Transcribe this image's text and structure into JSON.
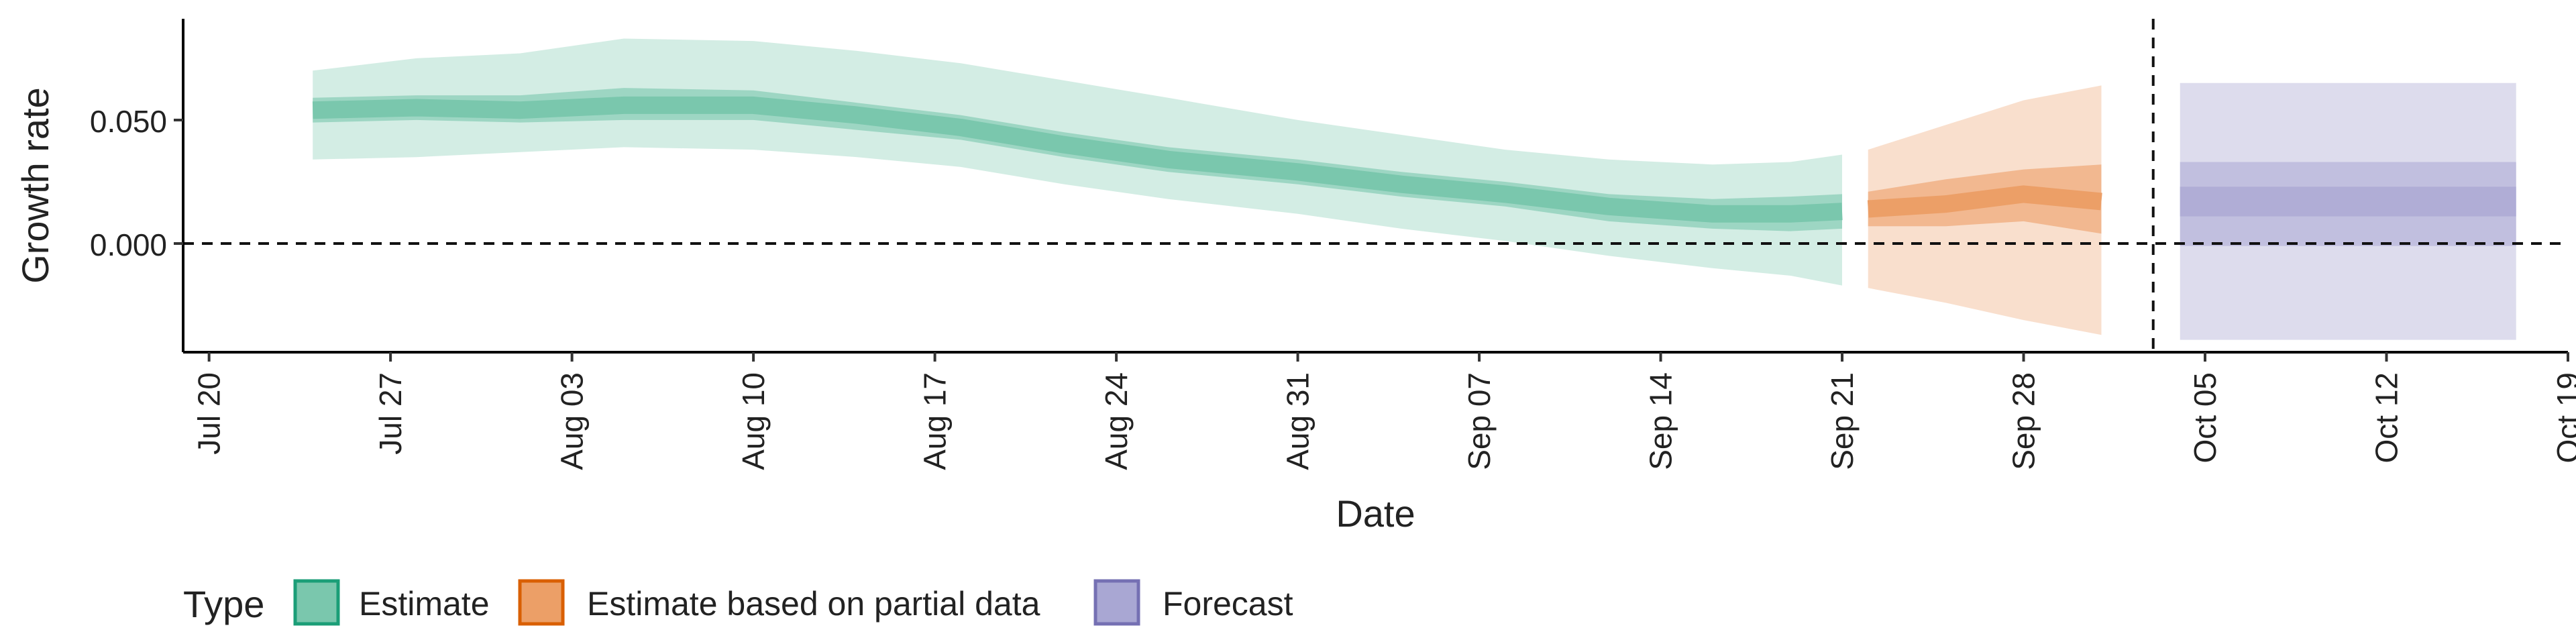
{
  "chart_data": {
    "type": "area",
    "xlabel": "Date",
    "ylabel": "Growth rate",
    "x_range": [
      "2020-07-19",
      "2020-10-19"
    ],
    "ylim": [
      -0.044,
      0.091
    ],
    "x_ticks": [
      "Jul 20",
      "Jul 27",
      "Aug 03",
      "Aug 10",
      "Aug 17",
      "Aug 24",
      "Aug 31",
      "Sep 07",
      "Sep 14",
      "Sep 21",
      "Sep 28",
      "Oct 05",
      "Oct 12",
      "Oct 19"
    ],
    "x_tick_dates": [
      "2020-07-20",
      "2020-07-27",
      "2020-08-03",
      "2020-08-10",
      "2020-08-17",
      "2020-08-24",
      "2020-08-31",
      "2020-09-07",
      "2020-09-14",
      "2020-09-21",
      "2020-09-28",
      "2020-10-05",
      "2020-10-12",
      "2020-10-19"
    ],
    "y_ticks": [
      "0.000",
      "0.050"
    ],
    "y_tick_values": [
      0.0,
      0.05
    ],
    "reference_hline": 0.0,
    "reference_vline": "2020-10-03",
    "grid": false,
    "legend": {
      "title": "Type",
      "position": "bottom",
      "entries": [
        {
          "label": "Estimate",
          "fill": "#7ac7ad",
          "stroke": "#1b9e77"
        },
        {
          "label": "Estimate based on partial data",
          "fill": "#ec9f67",
          "stroke": "#d95f02"
        },
        {
          "label": "Forecast",
          "fill": "#a9a7d3",
          "stroke": "#7570b3"
        }
      ]
    },
    "series": [
      {
        "name": "Estimate",
        "color": "#1b9e77",
        "points": [
          {
            "date": "2020-07-24",
            "median": 0.054,
            "lower50": 0.049,
            "upper50": 0.059,
            "lower90": 0.034,
            "upper90": 0.07
          },
          {
            "date": "2020-07-28",
            "median": 0.055,
            "lower50": 0.05,
            "upper50": 0.06,
            "lower90": 0.035,
            "upper90": 0.075
          },
          {
            "date": "2020-08-01",
            "median": 0.054,
            "lower50": 0.049,
            "upper50": 0.06,
            "lower90": 0.037,
            "upper90": 0.077
          },
          {
            "date": "2020-08-05",
            "median": 0.056,
            "lower50": 0.05,
            "upper50": 0.063,
            "lower90": 0.039,
            "upper90": 0.083
          },
          {
            "date": "2020-08-10",
            "median": 0.056,
            "lower50": 0.05,
            "upper50": 0.062,
            "lower90": 0.038,
            "upper90": 0.082
          },
          {
            "date": "2020-08-14",
            "median": 0.052,
            "lower50": 0.046,
            "upper50": 0.057,
            "lower90": 0.035,
            "upper90": 0.078
          },
          {
            "date": "2020-08-18",
            "median": 0.047,
            "lower50": 0.042,
            "upper50": 0.052,
            "lower90": 0.031,
            "upper90": 0.073
          },
          {
            "date": "2020-08-22",
            "median": 0.04,
            "lower50": 0.035,
            "upper50": 0.045,
            "lower90": 0.024,
            "upper90": 0.066
          },
          {
            "date": "2020-08-26",
            "median": 0.034,
            "lower50": 0.029,
            "upper50": 0.039,
            "lower90": 0.018,
            "upper90": 0.059
          },
          {
            "date": "2020-08-31",
            "median": 0.029,
            "lower50": 0.024,
            "upper50": 0.034,
            "lower90": 0.012,
            "upper90": 0.05
          },
          {
            "date": "2020-09-04",
            "median": 0.024,
            "lower50": 0.019,
            "upper50": 0.029,
            "lower90": 0.006,
            "upper90": 0.044
          },
          {
            "date": "2020-09-08",
            "median": 0.02,
            "lower50": 0.015,
            "upper50": 0.025,
            "lower90": 0.001,
            "upper90": 0.038
          },
          {
            "date": "2020-09-12",
            "median": 0.015,
            "lower50": 0.009,
            "upper50": 0.02,
            "lower90": -0.005,
            "upper90": 0.034
          },
          {
            "date": "2020-09-16",
            "median": 0.012,
            "lower50": 0.006,
            "upper50": 0.018,
            "lower90": -0.01,
            "upper90": 0.032
          },
          {
            "date": "2020-09-19",
            "median": 0.012,
            "lower50": 0.005,
            "upper50": 0.019,
            "lower90": -0.013,
            "upper90": 0.033
          },
          {
            "date": "2020-09-21",
            "median": 0.013,
            "lower50": 0.006,
            "upper50": 0.02,
            "lower90": -0.017,
            "upper90": 0.036
          }
        ]
      },
      {
        "name": "Estimate based on partial data",
        "color": "#d95f02",
        "points": [
          {
            "date": "2020-09-22",
            "median": 0.014,
            "lower50": 0.007,
            "upper50": 0.021,
            "lower90": -0.018,
            "upper90": 0.038
          },
          {
            "date": "2020-09-25",
            "median": 0.016,
            "lower50": 0.007,
            "upper50": 0.026,
            "lower90": -0.024,
            "upper90": 0.048
          },
          {
            "date": "2020-09-28",
            "median": 0.02,
            "lower50": 0.009,
            "upper50": 0.03,
            "lower90": -0.031,
            "upper90": 0.058
          },
          {
            "date": "2020-10-01",
            "median": 0.017,
            "lower50": 0.004,
            "upper50": 0.032,
            "lower90": -0.037,
            "upper90": 0.064
          }
        ]
      },
      {
        "name": "Forecast",
        "color": "#7570b3",
        "range": [
          "2020-10-03",
          "2020-10-17"
        ],
        "median": 0.016,
        "lower_inner": 0.011,
        "upper_inner": 0.023,
        "lower50": -0.001,
        "upper50": 0.033,
        "lower90": -0.039,
        "upper90": 0.065
      }
    ]
  }
}
